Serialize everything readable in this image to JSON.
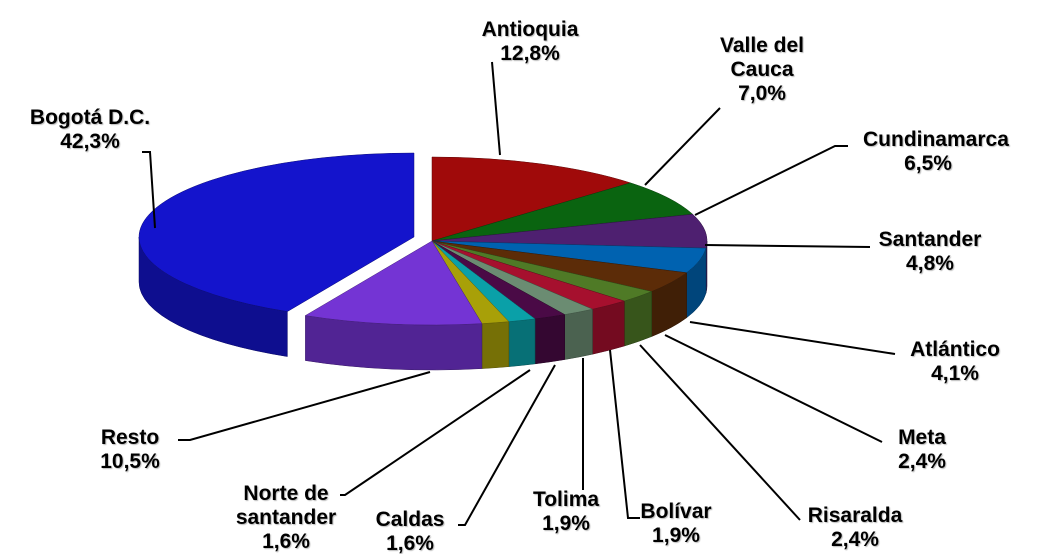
{
  "chart_data": {
    "type": "pie",
    "categories": [
      "Antioquia",
      "Valle del Cauca",
      "Cundinamarca",
      "Santander",
      "Atlántico",
      "Meta",
      "Risaralda",
      "Bolívar",
      "Tolima",
      "Caldas",
      "Norte de santander",
      "Resto",
      "Bogotá D.C."
    ],
    "values": [
      12.8,
      7.0,
      6.5,
      4.8,
      4.1,
      2.4,
      2.4,
      1.9,
      1.9,
      1.6,
      1.6,
      10.5,
      42.3
    ],
    "value_labels": [
      "12,8%",
      "7,0%",
      "6,5%",
      "4,8%",
      "4,1%",
      "2,4%",
      "2,4%",
      "1,9%",
      "1,9%",
      "1,6%",
      "1,6%",
      "10,5%",
      "42,3%"
    ],
    "colors": [
      "#a00a0a",
      "#0a6410",
      "#4e2070",
      "#0062b0",
      "#5c2c08",
      "#4f7a26",
      "#a6102e",
      "#6b8c72",
      "#4a0a46",
      "#0aa0a8",
      "#a8a008",
      "#7434d4",
      "#1414cc"
    ]
  }
}
